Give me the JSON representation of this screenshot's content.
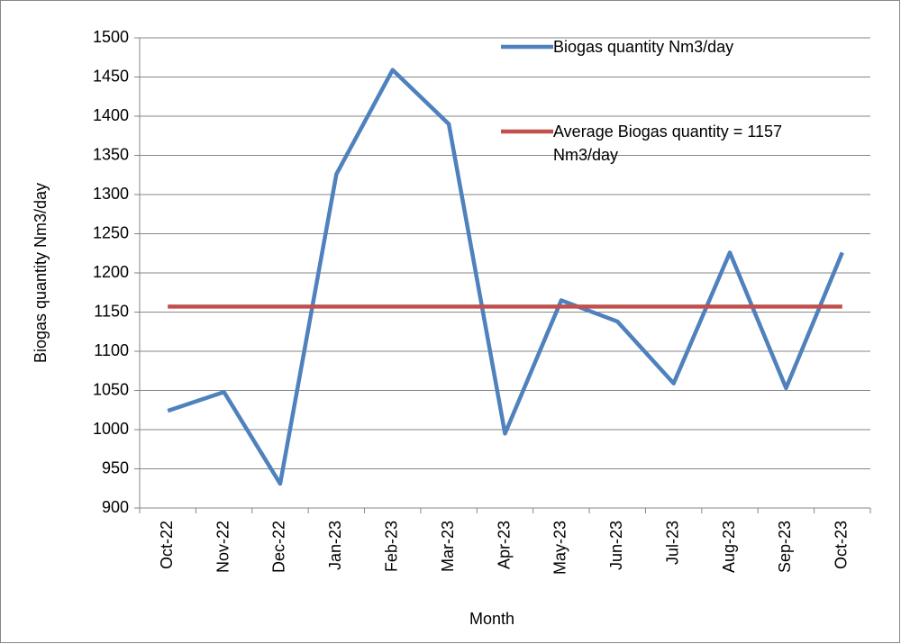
{
  "chart_data": {
    "type": "line",
    "x_label": "Month",
    "y_label": "Biogas quantity Nm3/day",
    "categories": [
      "Oct-22",
      "Nov-22",
      "Dec-22",
      "Jan-23",
      "Feb-23",
      "Mar-23",
      "Apr-23",
      "May-23",
      "Jun-23",
      "Jul-23",
      "Aug-23",
      "Sep-23",
      "Oct-23"
    ],
    "series": [
      {
        "name": "Biogas quantity Nm3/day",
        "color": "#4f81bd",
        "values": [
          1024,
          1048,
          931,
          1326,
          1459,
          1390,
          995,
          1165,
          1138,
          1059,
          1226,
          1053,
          1226
        ]
      },
      {
        "name": "Average Biogas quantity = 1157 Nm3/day",
        "color": "#c0504d",
        "values": [
          1157,
          1157,
          1157,
          1157,
          1157,
          1157,
          1157,
          1157,
          1157,
          1157,
          1157,
          1157,
          1157
        ]
      }
    ],
    "ylim": [
      900,
      1500
    ],
    "yticks": [
      900,
      950,
      1000,
      1050,
      1100,
      1150,
      1200,
      1250,
      1300,
      1350,
      1400,
      1450,
      1500
    ],
    "grid": true
  }
}
